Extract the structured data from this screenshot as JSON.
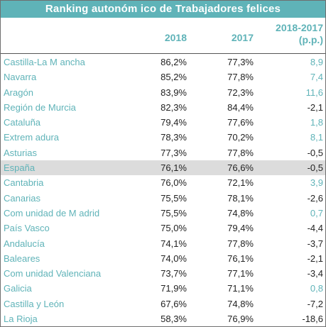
{
  "title": "Ranking autonóm ico de Trabajadores felices",
  "chart_data": {
    "type": "table",
    "columns": [
      "2018",
      "2017",
      "2018-2017",
      "(p.p.)"
    ],
    "rows": [
      {
        "name": "Castilla-La M ancha",
        "v2018": "86,2%",
        "v2017": "77,3%",
        "diff": "8,9",
        "sign": "pos"
      },
      {
        "name": "Navarra",
        "v2018": "85,2%",
        "v2017": "77,8%",
        "diff": "7,4",
        "sign": "pos"
      },
      {
        "name": "Aragón",
        "v2018": "83,9%",
        "v2017": "72,3%",
        "diff": "11,6",
        "sign": "pos"
      },
      {
        "name": "Región de Murcia",
        "v2018": "82,3%",
        "v2017": "84,4%",
        "diff": "-2,1",
        "sign": "neg"
      },
      {
        "name": "Cataluña",
        "v2018": "79,4%",
        "v2017": "77,6%",
        "diff": "1,8",
        "sign": "pos"
      },
      {
        "name": "Extrem adura",
        "v2018": "78,3%",
        "v2017": "70,2%",
        "diff": "8,1",
        "sign": "pos"
      },
      {
        "name": "Asturias",
        "v2018": "77,3%",
        "v2017": "77,8%",
        "diff": "-0,5",
        "sign": "neg"
      },
      {
        "name": "España",
        "v2018": "76,1%",
        "v2017": "76,6%",
        "diff": "-0,5",
        "sign": "neg",
        "highlight": true
      },
      {
        "name": "Cantabria",
        "v2018": "76,0%",
        "v2017": "72,1%",
        "diff": "3,9",
        "sign": "pos"
      },
      {
        "name": "Canarias",
        "v2018": "75,5%",
        "v2017": "78,1%",
        "diff": "-2,6",
        "sign": "neg"
      },
      {
        "name": "Com unidad de M adrid",
        "v2018": "75,5%",
        "v2017": "74,8%",
        "diff": "0,7",
        "sign": "pos"
      },
      {
        "name": "País Vasco",
        "v2018": "75,0%",
        "v2017": "79,4%",
        "diff": "-4,4",
        "sign": "neg"
      },
      {
        "name": "Andalucía",
        "v2018": "74,1%",
        "v2017": "77,8%",
        "diff": "-3,7",
        "sign": "neg"
      },
      {
        "name": "Baleares",
        "v2018": "74,0%",
        "v2017": "76,1%",
        "diff": "-2,1",
        "sign": "neg"
      },
      {
        "name": "Com unidad Valenciana",
        "v2018": "73,7%",
        "v2017": "77,1%",
        "diff": "-3,4",
        "sign": "neg"
      },
      {
        "name": "Galicia",
        "v2018": "71,9%",
        "v2017": "71,1%",
        "diff": "0,8",
        "sign": "pos"
      },
      {
        "name": "Castilla y León",
        "v2018": "67,6%",
        "v2017": "74,8%",
        "diff": "-7,2",
        "sign": "neg"
      },
      {
        "name": "La Rioja",
        "v2018": "58,3%",
        "v2017": "76,9%",
        "diff": "-18,6",
        "sign": "neg"
      }
    ]
  },
  "colors": {
    "accent": "#5fb3b8",
    "text": "#222222",
    "highlight": "#dcdcdc"
  }
}
